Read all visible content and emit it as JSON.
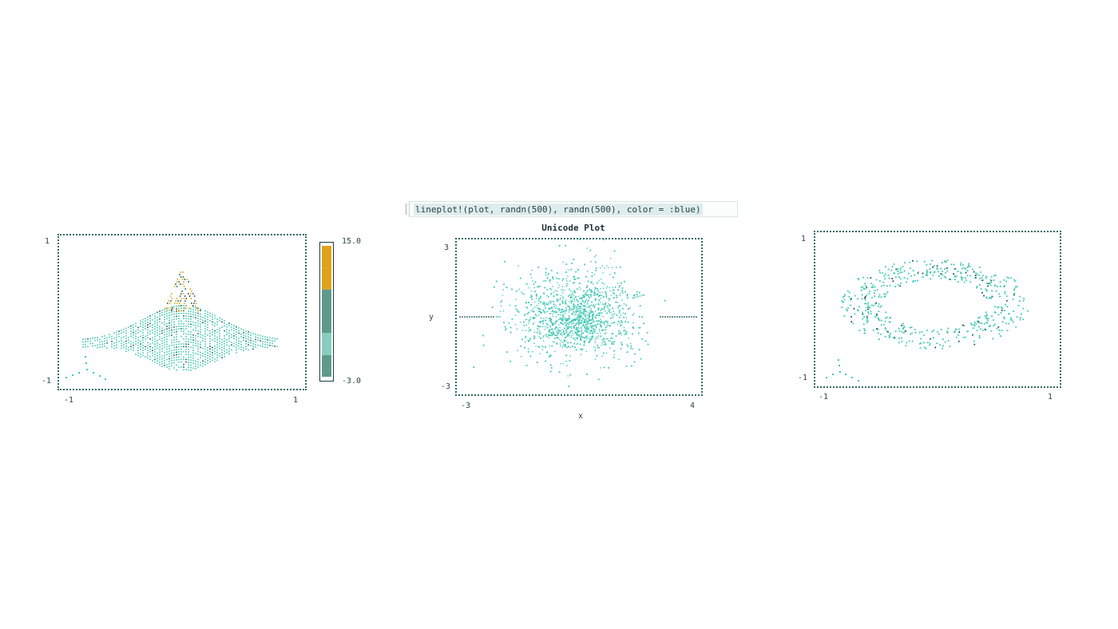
{
  "code_cell": {
    "text": "lineplot!(plot, randn(500), randn(500), color = :blue)"
  },
  "colors": {
    "dot": "#3fc7b5",
    "dot_dark": "#1f5a4e",
    "accent": "#e0a21a",
    "frame": "#2f6b5f"
  },
  "chart_data": [
    {
      "type": "surface",
      "title": "",
      "xlabel": "",
      "ylabel": "",
      "xlim": [
        -1,
        1
      ],
      "ylim": [
        -1,
        1
      ],
      "x_ticks": [
        "-1",
        "1"
      ],
      "y_ticks": [
        "1",
        "-1"
      ],
      "colorbar": {
        "min_label": "-3.0",
        "max_label": "15.0",
        "range": [
          -3.0,
          15.0
        ],
        "stops": [
          "#e0a21a",
          "#e0a21a",
          "#5e9a8a",
          "#5e9a8a",
          "#86cdbf",
          "#5e9a8a"
        ]
      }
    },
    {
      "type": "scatter",
      "title": "Unicode Plot",
      "xlabel": "x",
      "ylabel": "y",
      "xlim": [
        -3,
        4
      ],
      "ylim": [
        -3,
        3
      ],
      "x_ticks": [
        "-3",
        "4"
      ],
      "y_ticks": [
        "3",
        "-3"
      ],
      "n_points": 500
    },
    {
      "type": "surface",
      "title": "",
      "xlabel": "",
      "ylabel": "",
      "xlim": [
        -1,
        1
      ],
      "ylim": [
        -1,
        1
      ],
      "x_ticks": [
        "-1",
        "1"
      ],
      "y_ticks": [
        "1",
        "-1"
      ]
    }
  ]
}
